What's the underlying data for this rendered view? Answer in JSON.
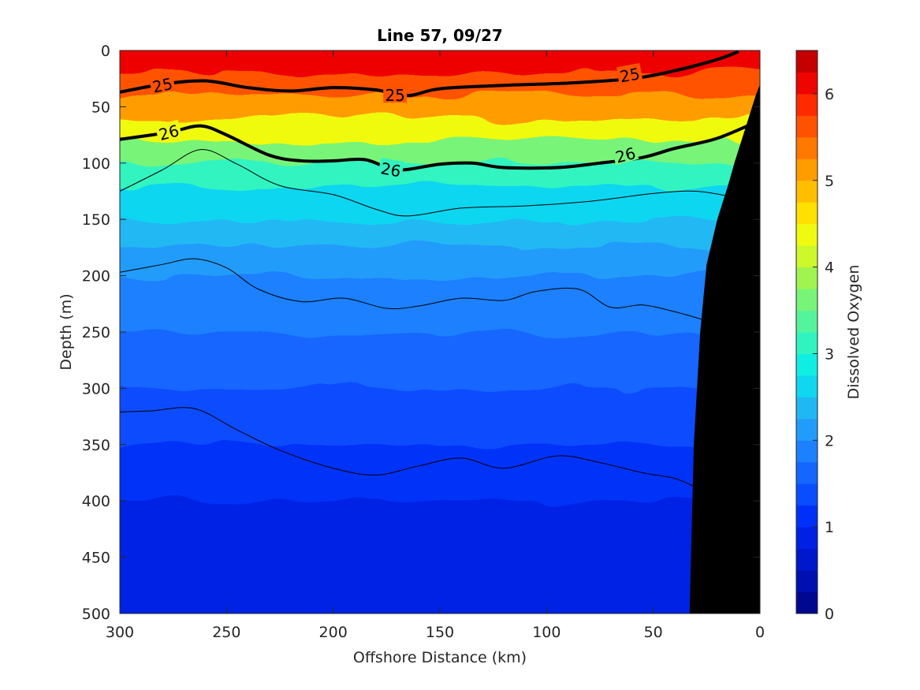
{
  "chart_data": {
    "type": "contour",
    "title": "Line 57, 09/27",
    "xlabel": "Offshore Distance (km)",
    "ylabel": "Depth (m)",
    "xlim": [
      300,
      0
    ],
    "ylim": [
      0,
      500
    ],
    "x_reversed": true,
    "y_reversed": true,
    "x_ticks": [
      300,
      250,
      200,
      150,
      100,
      50,
      0
    ],
    "y_ticks": [
      0,
      50,
      100,
      150,
      200,
      250,
      300,
      350,
      400,
      450,
      500
    ],
    "colorbar": {
      "label": "Dissolved Oxygen",
      "range": [
        0,
        6.5
      ],
      "ticks": [
        0,
        1,
        2,
        3,
        4,
        5,
        6
      ],
      "levels": [
        0,
        0.25,
        0.5,
        0.75,
        1.0,
        1.25,
        1.5,
        1.75,
        2.0,
        2.25,
        2.5,
        2.75,
        3.0,
        3.25,
        3.5,
        3.75,
        4.0,
        4.25,
        4.5,
        4.75,
        5.0,
        5.25,
        5.5,
        5.75,
        6.0,
        6.25,
        6.5
      ],
      "colors": [
        "#000890",
        "#0010b0",
        "#0018cc",
        "#0020e4",
        "#0030f8",
        "#0a4cff",
        "#1466ff",
        "#1c80ff",
        "#229cfa",
        "#20b8f4",
        "#10d6f0",
        "#10eee4",
        "#30f4c0",
        "#54f49c",
        "#78f478",
        "#a0f450",
        "#ccf82c",
        "#f0fa10",
        "#ffe000",
        "#ffbe00",
        "#ff9c00",
        "#ff7800",
        "#ff5200",
        "#ff2a00",
        "#ee0400",
        "#c40000"
      ]
    },
    "background": {
      "depth_m": [
        0,
        20,
        40,
        60,
        80,
        100,
        120,
        150,
        175,
        200,
        250,
        300,
        350,
        400,
        450,
        500
      ],
      "oxygen": [
        6.2,
        5.7,
        5.2,
        4.3,
        3.6,
        3.0,
        2.6,
        2.3,
        2.1,
        1.9,
        1.6,
        1.35,
        1.1,
        0.9,
        0.75,
        0.65
      ]
    },
    "density_contours": [
      {
        "level": "25",
        "bold": true,
        "x_km": [
          300,
          280,
          260,
          240,
          220,
          200,
          180,
          165,
          150,
          120,
          90,
          60,
          40,
          20,
          10
        ],
        "depth_m": [
          37,
          30,
          27,
          33,
          36,
          33,
          35,
          40,
          34,
          31,
          29,
          25,
          18,
          8,
          1
        ]
      },
      {
        "level": "26",
        "bold": true,
        "x_km": [
          300,
          285,
          275,
          262,
          250,
          230,
          215,
          200,
          185,
          170,
          150,
          135,
          120,
          95,
          75,
          55,
          40,
          20,
          0
        ],
        "depth_m": [
          79,
          75,
          72,
          67,
          75,
          93,
          98,
          98,
          97,
          106,
          101,
          100,
          104,
          104,
          100,
          95,
          87,
          78,
          62
        ]
      },
      {
        "level": "",
        "bold": false,
        "x_km": [
          300,
          280,
          262,
          245,
          225,
          200,
          180,
          165,
          140,
          110,
          80,
          50,
          30,
          10
        ],
        "depth_m": [
          125,
          106,
          88,
          101,
          120,
          128,
          141,
          147,
          140,
          138,
          134,
          127,
          125,
          131
        ]
      },
      {
        "level": "",
        "bold": false,
        "x_km": [
          300,
          280,
          265,
          250,
          235,
          215,
          195,
          175,
          160,
          140,
          120,
          105,
          85,
          70,
          55,
          40,
          25
        ],
        "depth_m": [
          197,
          190,
          185,
          193,
          212,
          223,
          220,
          229,
          227,
          220,
          222,
          214,
          212,
          228,
          226,
          232,
          240
        ]
      },
      {
        "level": "",
        "bold": false,
        "x_km": [
          300,
          285,
          265,
          245,
          225,
          200,
          180,
          160,
          140,
          120,
          95,
          75,
          55,
          40,
          30
        ],
        "depth_m": [
          321,
          320,
          318,
          337,
          355,
          371,
          377,
          369,
          362,
          371,
          360,
          366,
          375,
          380,
          388
        ]
      }
    ],
    "contour_labels": [
      {
        "text": "25",
        "x_km": 280,
        "depth_m": 31,
        "angle": -12
      },
      {
        "text": "25",
        "x_km": 171,
        "depth_m": 40,
        "angle": 0
      },
      {
        "text": "25",
        "x_km": 61,
        "depth_m": 22,
        "angle": -10
      },
      {
        "text": "26",
        "x_km": 277,
        "depth_m": 73,
        "angle": -15
      },
      {
        "text": "26",
        "x_km": 173,
        "depth_m": 106,
        "angle": 10
      },
      {
        "text": "26",
        "x_km": 63,
        "depth_m": 93,
        "angle": -15
      }
    ],
    "shelf_mask": {
      "x_km": [
        33,
        31,
        28,
        25,
        20,
        15,
        12,
        7,
        2,
        0,
        0
      ],
      "depth_m": [
        500,
        350,
        250,
        190,
        150,
        120,
        100,
        70,
        40,
        30,
        500
      ],
      "color": "#000000"
    }
  }
}
